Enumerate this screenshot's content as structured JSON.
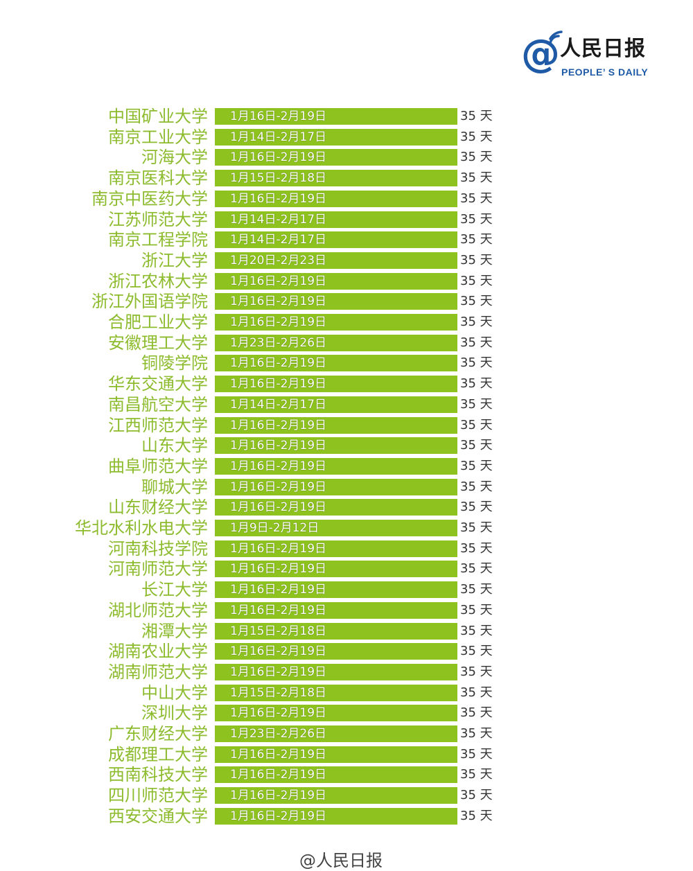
{
  "logo": {
    "at": "@",
    "cn": "人民日报",
    "en": "PEOPLE’ S DAILY"
  },
  "footer": {
    "text": "@人民日报"
  },
  "colors": {
    "bar": "#8dc21f",
    "label": "#8dbb2e",
    "days_text": "#333333",
    "logo_blue": "#1e5aa6"
  },
  "chart_data": {
    "type": "bar",
    "orientation": "horizontal",
    "title": "",
    "xlabel": "",
    "ylabel": "",
    "unit": "天",
    "categories": [
      "中国矿业大学",
      "南京工业大学",
      "河海大学",
      "南京医科大学",
      "南京中医药大学",
      "江苏师范大学",
      "南京工程学院",
      "浙江大学",
      "浙江农林大学",
      "浙江外国语学院",
      "合肥工业大学",
      "安徽理工大学",
      "铜陵学院",
      "华东交通大学",
      "南昌航空大学",
      "江西师范大学",
      "山东大学",
      "曲阜师范大学",
      "聊城大学",
      "山东财经大学",
      "华北水利水电大学",
      "河南科技学院",
      "河南师范大学",
      "长江大学",
      "湖北师范大学",
      "湘潭大学",
      "湖南农业大学",
      "湖南师范大学",
      "中山大学",
      "深圳大学",
      "广东财经大学",
      "成都理工大学",
      "西南科技大学",
      "四川师范大学",
      "西安交通大学"
    ],
    "date_ranges": [
      "1月16日-2月19日",
      "1月14日-2月17日",
      "1月16日-2月19日",
      "1月15日-2月18日",
      "1月16日-2月19日",
      "1月14日-2月17日",
      "1月14日-2月17日",
      "1月20日-2月23日",
      "1月16日-2月19日",
      "1月16日-2月19日",
      "1月16日-2月19日",
      "1月23日-2月26日",
      "1月16日-2月19日",
      "1月16日-2月19日",
      "1月14日-2月17日",
      "1月16日-2月19日",
      "1月16日-2月19日",
      "1月16日-2月19日",
      "1月16日-2月19日",
      "1月16日-2月19日",
      "1月9日-2月12日",
      "1月16日-2月19日",
      "1月16日-2月19日",
      "1月16日-2月19日",
      "1月16日-2月19日",
      "1月15日-2月18日",
      "1月16日-2月19日",
      "1月16日-2月19日",
      "1月15日-2月18日",
      "1月16日-2月19日",
      "1月23日-2月26日",
      "1月16日-2月19日",
      "1月16日-2月19日",
      "1月16日-2月19日",
      "1月16日-2月19日"
    ],
    "values": [
      35,
      35,
      35,
      35,
      35,
      35,
      35,
      35,
      35,
      35,
      35,
      35,
      35,
      35,
      35,
      35,
      35,
      35,
      35,
      35,
      35,
      35,
      35,
      35,
      35,
      35,
      35,
      35,
      35,
      35,
      35,
      35,
      35,
      35,
      35
    ],
    "value_labels": [
      "35 天",
      "35 天",
      "35 天",
      "35 天",
      "35 天",
      "35 天",
      "35 天",
      "35 天",
      "35 天",
      "35 天",
      "35 天",
      "35 天",
      "35 天",
      "35 天",
      "35 天",
      "35 天",
      "35 天",
      "35 天",
      "35 天",
      "35 天",
      "35 天",
      "35 天",
      "35 天",
      "35 天",
      "35 天",
      "35 天",
      "35 天",
      "35 天",
      "35 天",
      "35 天",
      "35 天",
      "35 天",
      "35 天",
      "35 天",
      "35 天"
    ],
    "xlim": [
      0,
      35
    ],
    "grid": false,
    "legend": "none"
  }
}
